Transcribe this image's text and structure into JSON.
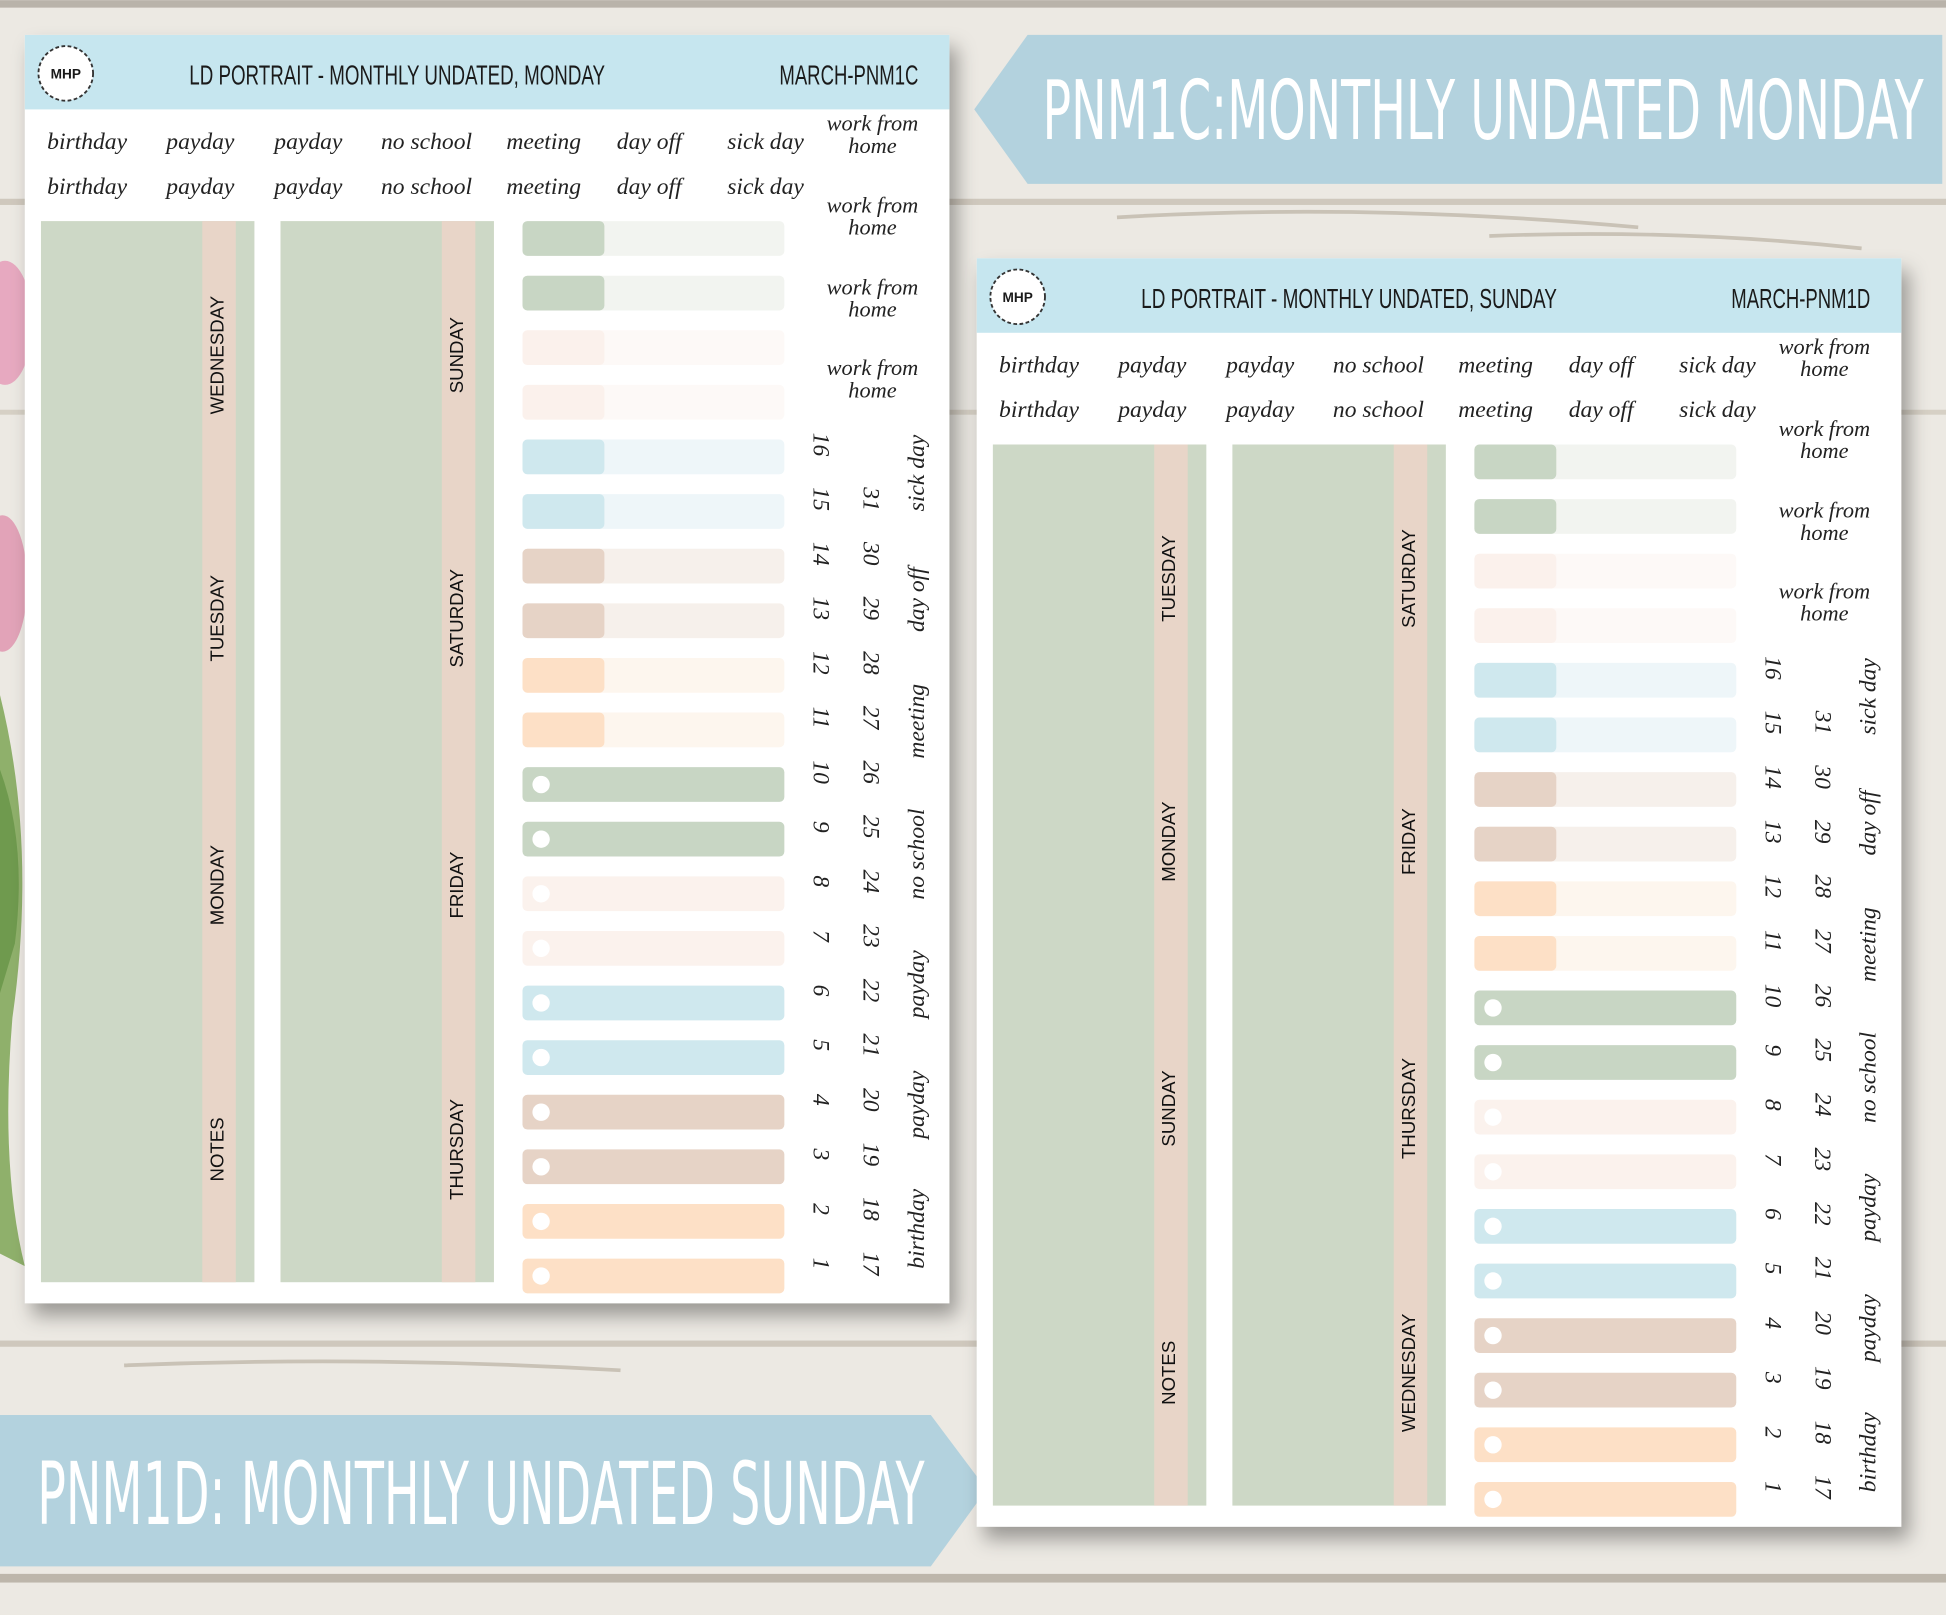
{
  "banners": [
    {
      "text": "PNM1C:MONTHLY UNDATED MONDAY"
    },
    {
      "text": "PNM1D: MONTHLY UNDATED SUNDAY"
    }
  ],
  "sheets": [
    {
      "logo": "MHP",
      "title": "LD PORTRAIT - MONTHLY UNDATED, MONDAY",
      "code": "MARCH-PNM1C",
      "label_rows": [
        [
          "birthday",
          "payday",
          "payday",
          "no school",
          "meeting",
          "day off",
          "sick day"
        ],
        [
          "birthday",
          "payday",
          "payday",
          "no school",
          "meeting",
          "day off",
          "sick day"
        ]
      ],
      "work_from_home": [
        [
          "work from",
          "home"
        ],
        [
          "work from",
          "home"
        ],
        [
          "work from",
          "home"
        ],
        [
          "work from",
          "home"
        ]
      ],
      "columns": [
        [
          "WEDNESDAY",
          "TUESDAY",
          "MONDAY",
          "NOTES"
        ],
        [
          "SUNDAY",
          "SATURDAY",
          "FRIDAY",
          "THURSDAY"
        ]
      ],
      "numbers": [
        [
          1,
          2,
          3,
          4,
          5,
          6,
          7,
          8,
          9,
          10,
          11,
          12,
          13,
          14,
          15,
          16
        ],
        [
          17,
          18,
          19,
          20,
          21,
          22,
          23,
          24,
          25,
          26,
          27,
          28,
          29,
          30,
          31
        ]
      ],
      "side_labels": [
        "birthday",
        "payday",
        "payday",
        "no school",
        "meeting",
        "day off",
        "sick day"
      ]
    },
    {
      "logo": "MHP",
      "title": "LD PORTRAIT - MONTHLY UNDATED, SUNDAY",
      "code": "MARCH-PNM1D",
      "label_rows": [
        [
          "birthday",
          "payday",
          "payday",
          "no school",
          "meeting",
          "day off",
          "sick day"
        ],
        [
          "birthday",
          "payday",
          "payday",
          "no school",
          "meeting",
          "day off",
          "sick day"
        ]
      ],
      "work_from_home": [
        [
          "work from",
          "home"
        ],
        [
          "work from",
          "home"
        ],
        [
          "work from",
          "home"
        ],
        [
          "work from",
          "home"
        ]
      ],
      "columns": [
        [
          "TUESDAY",
          "MONDAY",
          "SUNDAY",
          "NOTES"
        ],
        [
          "SATURDAY",
          "FRIDAY",
          "THURSDAY",
          "WEDNESDAY"
        ]
      ],
      "numbers": [
        [
          1,
          2,
          3,
          4,
          5,
          6,
          7,
          8,
          9,
          10,
          11,
          12,
          13,
          14,
          15,
          16
        ],
        [
          17,
          18,
          19,
          20,
          21,
          22,
          23,
          24,
          25,
          26,
          27,
          28,
          29,
          30,
          31
        ]
      ],
      "side_labels": [
        "birthday",
        "payday",
        "payday",
        "no school",
        "meeting",
        "day off",
        "sick day"
      ]
    }
  ]
}
